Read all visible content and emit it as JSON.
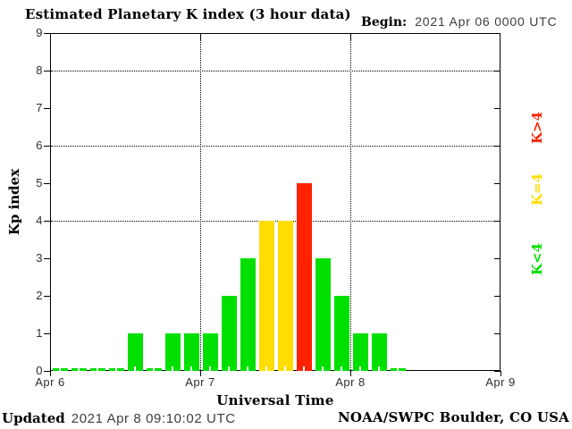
{
  "header": {
    "title": "Estimated Planetary K index (3 hour data)",
    "begin_label": "Begin:",
    "begin_value": "2021 Apr 06 0000 UTC"
  },
  "chart_data": {
    "type": "bar",
    "title": "Estimated Planetary K index (3 hour data)",
    "xlabel": "Universal Time",
    "ylabel": "Kp index",
    "ylim": [
      0,
      9
    ],
    "yticks": [
      0,
      1,
      2,
      3,
      4,
      5,
      6,
      7,
      8,
      9
    ],
    "grid_y_dotted": [
      4,
      6,
      8
    ],
    "x_day_labels": [
      "Apr 6",
      "Apr 7",
      "Apr 8",
      "Apr 9"
    ],
    "bars_per_day": 8,
    "hours_per_bar": 3,
    "series_start": "2021 Apr 06 0000 UTC",
    "values": [
      0,
      0,
      0,
      0,
      1,
      0,
      1,
      1,
      1,
      2,
      3,
      4,
      4,
      5,
      3,
      2,
      1,
      1,
      0
    ],
    "color_rule": "green if Kp<4, yellow if Kp=4, red if Kp>4",
    "colors": {
      "low": "#00e000",
      "mid": "#ffdd00",
      "high": "#ff2200"
    },
    "legend": [
      {
        "label": "K>4",
        "color": "#ff2200"
      },
      {
        "label": "K=4",
        "color": "#ffdd00"
      },
      {
        "label": "K<4",
        "color": "#00e000"
      }
    ],
    "legend_position": "right-rotated",
    "grid": "dotted horizontal at 4,6,8; dotted vertical at day boundaries"
  },
  "footer": {
    "updated_label": "Updated",
    "updated_value": "2021 Apr  8 09:10:02 UTC",
    "xaxis_title": "Universal Time",
    "credit": "NOAA/SWPC Boulder, CO USA"
  }
}
